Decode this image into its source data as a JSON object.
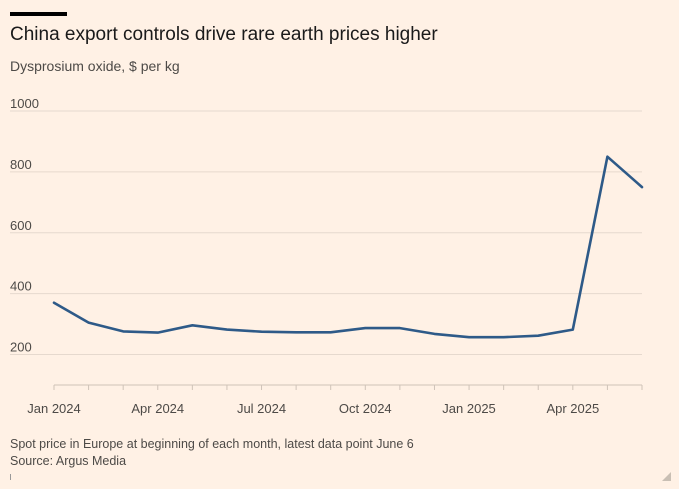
{
  "chart_data": {
    "type": "line",
    "title": "China export controls drive rare earth prices higher",
    "subtitle": "Dysprosium oxide, $ per kg",
    "x_tick_labels": [
      "Jan 2024",
      "Apr 2024",
      "Jul 2024",
      "Oct 2024",
      "Jan 2025",
      "Apr 2025"
    ],
    "y_ticks": [
      200,
      400,
      600,
      800,
      1000
    ],
    "ylim": [
      100,
      1000
    ],
    "grid": true,
    "series": [
      {
        "color": "#2e5a88",
        "x": [
          "2024-01",
          "2024-02",
          "2024-03",
          "2024-04",
          "2024-05",
          "2024-06",
          "2024-07",
          "2024-08",
          "2024-09",
          "2024-10",
          "2024-11",
          "2024-12",
          "2025-01",
          "2025-02",
          "2025-03",
          "2025-04",
          "2025-05",
          "2025-06"
        ],
        "values": [
          370,
          305,
          276,
          272,
          296,
          282,
          275,
          273,
          273,
          287,
          287,
          268,
          257,
          257,
          262,
          282,
          850,
          750
        ]
      }
    ],
    "footnote": "Spot price in Europe at beginning of each month, latest data point June 6",
    "source": "Source: Argus Media"
  }
}
